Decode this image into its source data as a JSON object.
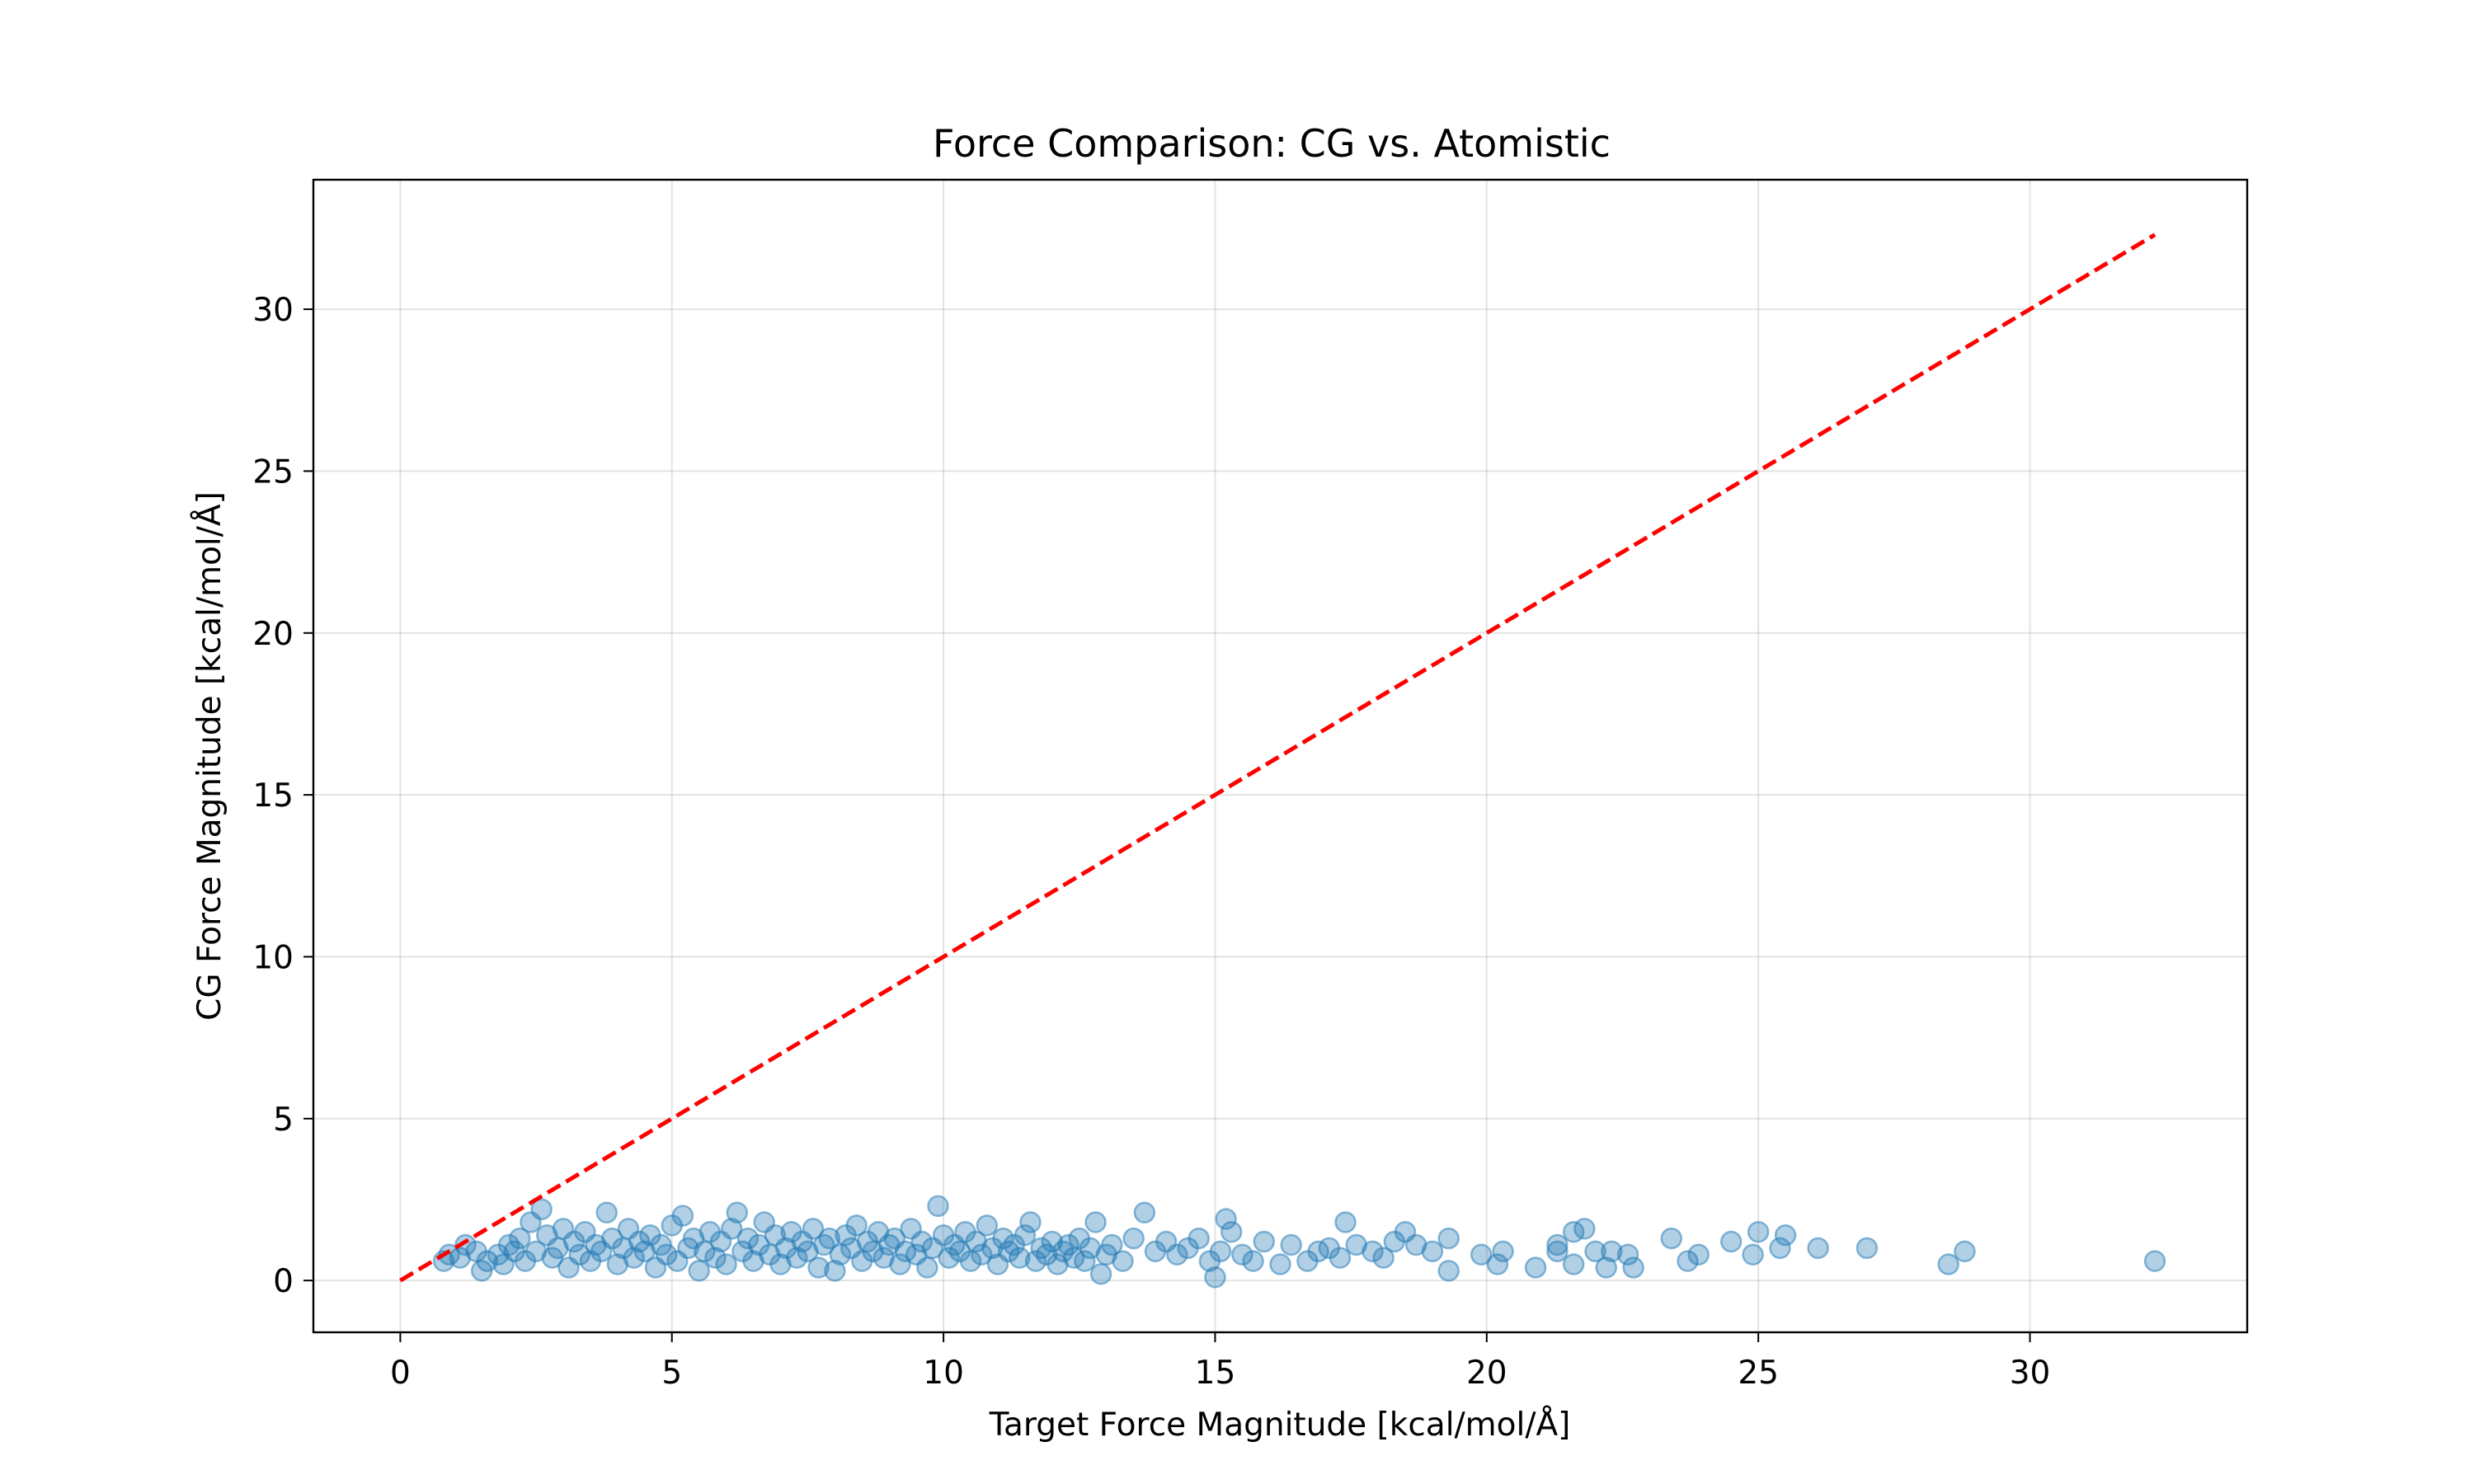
{
  "chart_data": {
    "type": "scatter",
    "title": "Force Comparison: CG vs. Atomistic",
    "xlabel": "Target Force Magnitude [kcal/mol/Å]",
    "ylabel": "CG Force Magnitude [kcal/mol/Å]",
    "xlim": [
      -1.6,
      34.0
    ],
    "ylim": [
      -1.6,
      34.0
    ],
    "xticks": [
      0,
      5,
      10,
      15,
      20,
      25,
      30
    ],
    "yticks": [
      0,
      5,
      10,
      15,
      20,
      25,
      30
    ],
    "grid": true,
    "colors": {
      "points": "#1f77b4",
      "reference_line": "#ff0000"
    },
    "point_alpha": 0.35,
    "reference_line": {
      "x": [
        0,
        32.3
      ],
      "y": [
        0,
        32.3
      ]
    },
    "series": [
      {
        "points": [
          [
            0.8,
            0.6
          ],
          [
            0.9,
            0.8
          ],
          [
            1.1,
            0.7
          ],
          [
            1.2,
            1.1
          ],
          [
            1.4,
            0.9
          ],
          [
            1.5,
            0.3
          ],
          [
            1.6,
            0.6
          ],
          [
            1.8,
            0.8
          ],
          [
            1.9,
            0.5
          ],
          [
            2.0,
            1.1
          ],
          [
            2.1,
            0.9
          ],
          [
            2.2,
            1.3
          ],
          [
            2.3,
            0.6
          ],
          [
            2.4,
            1.8
          ],
          [
            2.5,
            0.9
          ],
          [
            2.6,
            2.2
          ],
          [
            2.7,
            1.4
          ],
          [
            2.8,
            0.7
          ],
          [
            2.9,
            1.0
          ],
          [
            3.0,
            1.6
          ],
          [
            3.1,
            0.4
          ],
          [
            3.2,
            1.2
          ],
          [
            3.3,
            0.8
          ],
          [
            3.4,
            1.5
          ],
          [
            3.5,
            0.6
          ],
          [
            3.6,
            1.1
          ],
          [
            3.7,
            0.9
          ],
          [
            3.8,
            2.1
          ],
          [
            3.9,
            1.3
          ],
          [
            4.0,
            0.5
          ],
          [
            4.1,
            1.0
          ],
          [
            4.2,
            1.6
          ],
          [
            4.3,
            0.7
          ],
          [
            4.4,
            1.2
          ],
          [
            4.5,
            0.9
          ],
          [
            4.6,
            1.4
          ],
          [
            4.7,
            0.4
          ],
          [
            4.8,
            1.1
          ],
          [
            4.9,
            0.8
          ],
          [
            5.0,
            1.7
          ],
          [
            5.1,
            0.6
          ],
          [
            5.2,
            2.0
          ],
          [
            5.3,
            1.0
          ],
          [
            5.4,
            1.3
          ],
          [
            5.5,
            0.3
          ],
          [
            5.6,
            0.9
          ],
          [
            5.7,
            1.5
          ],
          [
            5.8,
            0.7
          ],
          [
            5.9,
            1.2
          ],
          [
            6.0,
            0.5
          ],
          [
            6.1,
            1.6
          ],
          [
            6.2,
            2.1
          ],
          [
            6.3,
            0.9
          ],
          [
            6.4,
            1.3
          ],
          [
            6.5,
            0.6
          ],
          [
            6.6,
            1.1
          ],
          [
            6.7,
            1.8
          ],
          [
            6.8,
            0.8
          ],
          [
            6.9,
            1.4
          ],
          [
            7.0,
            0.5
          ],
          [
            7.1,
            1.0
          ],
          [
            7.2,
            1.5
          ],
          [
            7.3,
            0.7
          ],
          [
            7.4,
            1.2
          ],
          [
            7.5,
            0.9
          ],
          [
            7.6,
            1.6
          ],
          [
            7.7,
            0.4
          ],
          [
            7.8,
            1.1
          ],
          [
            7.9,
            1.3
          ],
          [
            8.0,
            0.3
          ],
          [
            8.1,
            0.8
          ],
          [
            8.2,
            1.4
          ],
          [
            8.3,
            1.0
          ],
          [
            8.4,
            1.7
          ],
          [
            8.5,
            0.6
          ],
          [
            8.6,
            1.2
          ],
          [
            8.7,
            0.9
          ],
          [
            8.8,
            1.5
          ],
          [
            8.9,
            0.7
          ],
          [
            9.0,
            1.1
          ],
          [
            9.1,
            1.3
          ],
          [
            9.2,
            0.5
          ],
          [
            9.3,
            0.9
          ],
          [
            9.4,
            1.6
          ],
          [
            9.5,
            0.8
          ],
          [
            9.6,
            1.2
          ],
          [
            9.7,
            0.4
          ],
          [
            9.8,
            1.0
          ],
          [
            9.9,
            2.3
          ],
          [
            10.0,
            1.4
          ],
          [
            10.1,
            0.7
          ],
          [
            10.2,
            1.1
          ],
          [
            10.3,
            0.9
          ],
          [
            10.4,
            1.5
          ],
          [
            10.5,
            0.6
          ],
          [
            10.6,
            1.2
          ],
          [
            10.7,
            0.8
          ],
          [
            10.8,
            1.7
          ],
          [
            10.9,
            1.0
          ],
          [
            11.0,
            0.5
          ],
          [
            11.1,
            1.3
          ],
          [
            11.2,
            0.9
          ],
          [
            11.3,
            1.1
          ],
          [
            11.4,
            0.7
          ],
          [
            11.5,
            1.4
          ],
          [
            11.6,
            1.8
          ],
          [
            11.7,
            0.6
          ],
          [
            11.8,
            1.0
          ],
          [
            11.9,
            0.8
          ],
          [
            12.0,
            1.2
          ],
          [
            12.1,
            0.5
          ],
          [
            12.2,
            0.9
          ],
          [
            12.3,
            1.1
          ],
          [
            12.4,
            0.7
          ],
          [
            12.5,
            1.3
          ],
          [
            12.6,
            0.6
          ],
          [
            12.7,
            1.0
          ],
          [
            12.8,
            1.8
          ],
          [
            12.9,
            0.2
          ],
          [
            13.0,
            0.8
          ],
          [
            13.1,
            1.1
          ],
          [
            13.3,
            0.6
          ],
          [
            13.5,
            1.3
          ],
          [
            13.7,
            2.1
          ],
          [
            13.9,
            0.9
          ],
          [
            14.1,
            1.2
          ],
          [
            14.3,
            0.8
          ],
          [
            14.5,
            1.0
          ],
          [
            14.7,
            1.3
          ],
          [
            14.9,
            0.6
          ],
          [
            15.0,
            0.1
          ],
          [
            15.1,
            0.9
          ],
          [
            15.2,
            1.9
          ],
          [
            15.3,
            1.5
          ],
          [
            15.5,
            0.8
          ],
          [
            15.7,
            0.6
          ],
          [
            15.9,
            1.2
          ],
          [
            16.2,
            0.5
          ],
          [
            16.4,
            1.1
          ],
          [
            16.7,
            0.6
          ],
          [
            16.9,
            0.9
          ],
          [
            17.1,
            1.0
          ],
          [
            17.3,
            0.7
          ],
          [
            17.4,
            1.8
          ],
          [
            17.6,
            1.1
          ],
          [
            17.9,
            0.9
          ],
          [
            18.1,
            0.7
          ],
          [
            18.3,
            1.2
          ],
          [
            18.5,
            1.5
          ],
          [
            18.7,
            1.1
          ],
          [
            19.0,
            0.9
          ],
          [
            19.3,
            1.3
          ],
          [
            19.3,
            0.3
          ],
          [
            19.9,
            0.8
          ],
          [
            20.2,
            0.5
          ],
          [
            20.3,
            0.9
          ],
          [
            20.9,
            0.4
          ],
          [
            21.3,
            1.1
          ],
          [
            21.3,
            0.9
          ],
          [
            21.6,
            0.5
          ],
          [
            21.6,
            1.5
          ],
          [
            21.8,
            1.6
          ],
          [
            22.0,
            0.9
          ],
          [
            22.2,
            0.4
          ],
          [
            22.3,
            0.9
          ],
          [
            22.6,
            0.8
          ],
          [
            22.7,
            0.4
          ],
          [
            23.4,
            1.3
          ],
          [
            23.7,
            0.6
          ],
          [
            23.9,
            0.8
          ],
          [
            24.5,
            1.2
          ],
          [
            24.9,
            0.8
          ],
          [
            25.0,
            1.5
          ],
          [
            25.4,
            1.0
          ],
          [
            25.5,
            1.4
          ],
          [
            26.1,
            1.0
          ],
          [
            27.0,
            1.0
          ],
          [
            28.5,
            0.5
          ],
          [
            28.8,
            0.9
          ],
          [
            32.3,
            0.6
          ]
        ]
      }
    ]
  }
}
